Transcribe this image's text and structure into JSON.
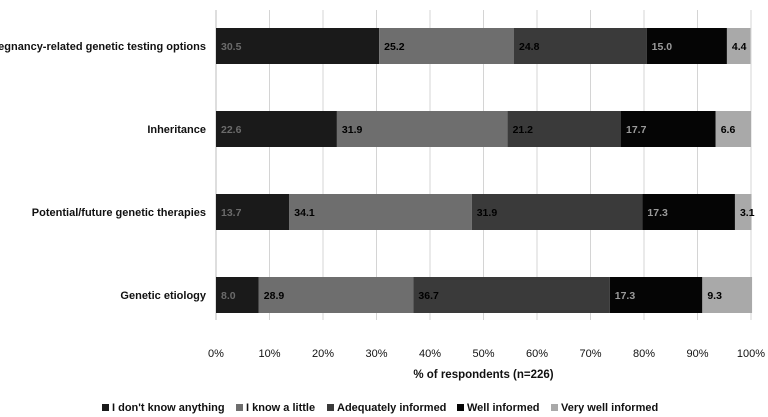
{
  "chart_data": {
    "type": "bar",
    "orientation": "horizontal",
    "stacked": "100%",
    "categories": [
      "Pregnancy-related genetic testing options",
      "Inheritance",
      "Potential/future genetic therapies",
      "Genetic etiology"
    ],
    "series": [
      {
        "name": "I don't know anything",
        "color": "#1a1a1a",
        "label_color": "#6b6b6b",
        "values": [
          30.5,
          22.6,
          13.7,
          8.0
        ]
      },
      {
        "name": "I know a little",
        "color": "#6e6e6e",
        "label_color": "#000000",
        "values": [
          25.2,
          31.9,
          34.1,
          28.9
        ]
      },
      {
        "name": "Adequately informed",
        "color": "#3a3a3a",
        "label_color": "#000000",
        "values": [
          24.8,
          21.2,
          31.9,
          36.7
        ]
      },
      {
        "name": "Well informed",
        "color": "#050505",
        "label_color": "#9a9a9a",
        "values": [
          15.0,
          17.7,
          17.3,
          17.3
        ]
      },
      {
        "name": "Very well informed",
        "color": "#a9a9a9",
        "label_color": "#000000",
        "values": [
          4.4,
          6.6,
          3.1,
          9.3
        ]
      }
    ],
    "xlabel": "% of respondents (n=226)",
    "xlim": [
      0,
      100
    ],
    "xticks": [
      "0%",
      "10%",
      "20%",
      "30%",
      "40%",
      "50%",
      "60%",
      "70%",
      "80%",
      "90%",
      "100%"
    ],
    "grid": "vertical",
    "legend": "bottom"
  }
}
